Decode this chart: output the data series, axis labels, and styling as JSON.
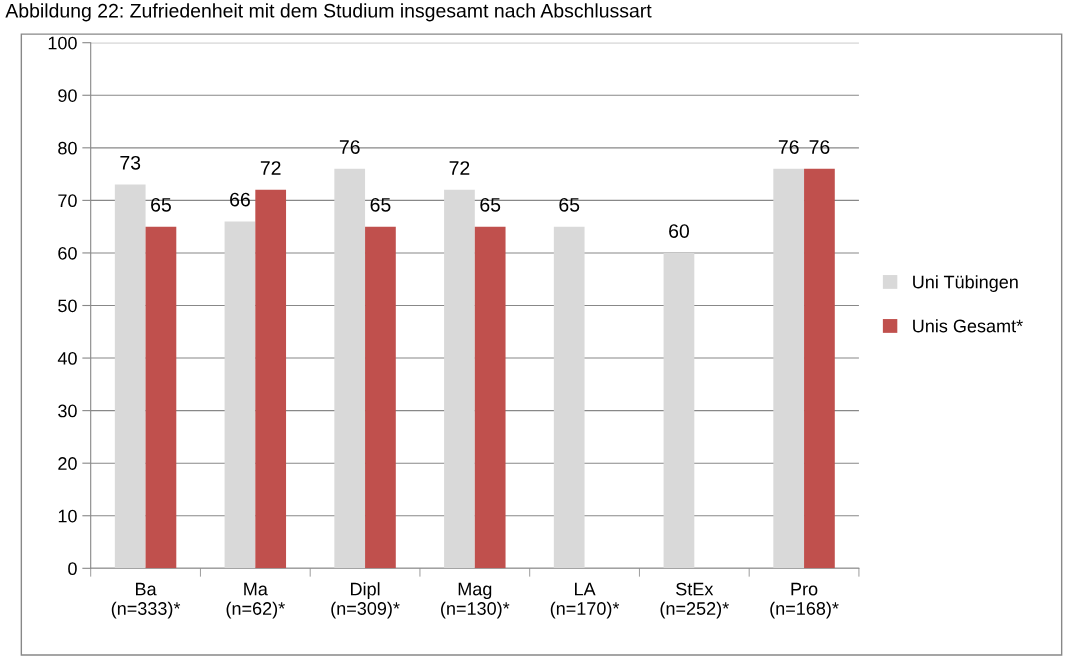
{
  "chart_data": {
    "type": "bar",
    "title": "Abbildung 22: Zufriedenheit mit dem Studium insgesamt nach Abschlussart",
    "categories": [
      "Ba\n(n=333)*",
      "Ma\n(n=62)*",
      "Dipl\n(n=309)*",
      "Mag\n(n=130)*",
      "LA\n(n=170)*",
      "StEx\n(n=252)*",
      "Pro\n(n=168)*"
    ],
    "series": [
      {
        "name": "Uni Tübingen",
        "color": "#d9d9d9",
        "values": [
          73,
          66,
          76,
          72,
          65,
          60,
          76
        ]
      },
      {
        "name": "Unis Gesamt*",
        "color": "#c0504d",
        "values": [
          65,
          72,
          65,
          65,
          null,
          null,
          76
        ]
      }
    ],
    "ylim": [
      0,
      100
    ],
    "yticks": [
      0,
      10,
      20,
      30,
      40,
      50,
      60,
      70,
      80,
      90,
      100
    ],
    "grid": "y",
    "legend": "right",
    "data_labels": true
  }
}
